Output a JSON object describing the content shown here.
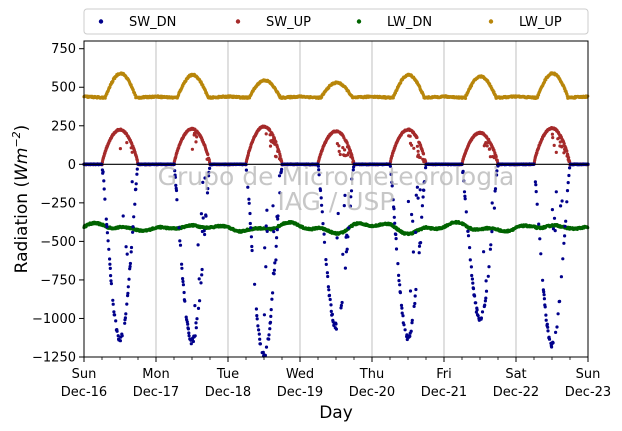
{
  "chart_data": {
    "type": "scatter",
    "xlabel": "Day",
    "ylabel_prefix": "Radiation (",
    "ylabel_unit_base": "Wm",
    "ylabel_unit_exp": "−2",
    "ylabel_suffix": ")",
    "ylim": [
      -1250,
      800
    ],
    "xlim_days": [
      0,
      7
    ],
    "yticks": [
      {
        "value": -1250,
        "label": "−1250"
      },
      {
        "value": -1000,
        "label": "−1000"
      },
      {
        "value": -750,
        "label": "−750"
      },
      {
        "value": -500,
        "label": "−500"
      },
      {
        "value": -250,
        "label": "−250"
      },
      {
        "value": 0,
        "label": "0"
      },
      {
        "value": 250,
        "label": "250"
      },
      {
        "value": 500,
        "label": "500"
      },
      {
        "value": 750,
        "label": "750"
      }
    ],
    "xticks": [
      {
        "day": "Sun",
        "date": "Dec-16"
      },
      {
        "day": "Mon",
        "date": "Dec-17"
      },
      {
        "day": "Tue",
        "date": "Dec-18"
      },
      {
        "day": "Wed",
        "date": "Dec-19"
      },
      {
        "day": "Thu",
        "date": "Dec-20"
      },
      {
        "day": "Fri",
        "date": "Dec-21"
      },
      {
        "day": "Sat",
        "date": "Dec-22"
      },
      {
        "day": "Sun",
        "date": "Dec-23"
      }
    ],
    "grid": "vertical at day boundaries",
    "zero_line": true,
    "legend_position": "top, above plot",
    "watermark_lines": [
      "Grupo de Micrometeorologia",
      "IAG / USP"
    ],
    "series": [
      {
        "name": "SW_DN",
        "color": "#00008b",
        "sign": -1,
        "baseline": 0,
        "daily_peak": [
          -1130,
          -1150,
          -1240,
          -1050,
          -1120,
          -1000,
          -1170
        ],
        "cloudiness": [
          0.4,
          0.6,
          0.8,
          0.9,
          0.6,
          0.5,
          0.7
        ]
      },
      {
        "name": "SW_UP",
        "color": "#a52a2a",
        "sign": 1,
        "baseline": 0,
        "daily_peak": [
          225,
          230,
          245,
          215,
          225,
          205,
          235
        ],
        "cloudiness": [
          0.4,
          0.6,
          0.8,
          0.9,
          0.6,
          0.5,
          0.7
        ]
      },
      {
        "name": "LW_DN",
        "color": "#006400",
        "baseline": -405,
        "min": -460,
        "max": -370
      },
      {
        "name": "LW_UP",
        "color": "#b8860b",
        "baseline": 440,
        "daily_peak": [
          590,
          580,
          545,
          530,
          580,
          570,
          590
        ]
      }
    ]
  }
}
